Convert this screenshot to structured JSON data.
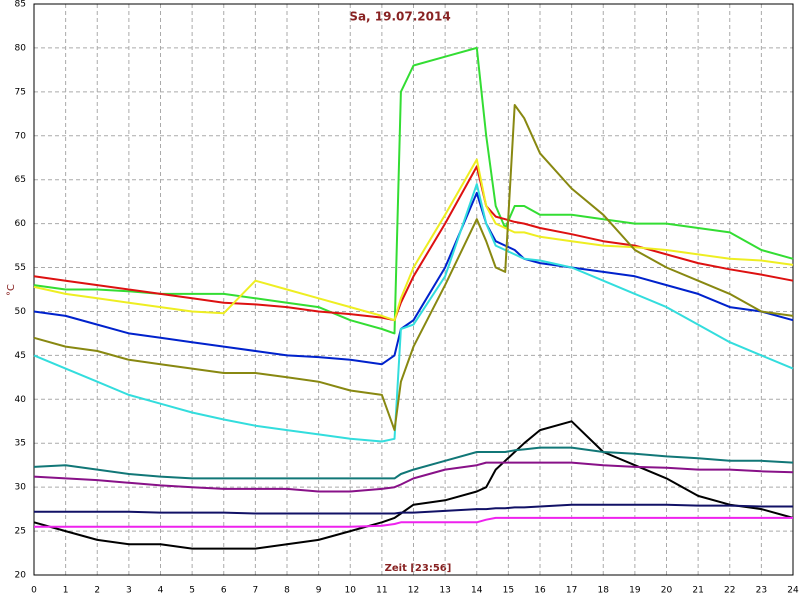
{
  "chart_data": {
    "type": "line",
    "title": "Sa, 19.07.2014",
    "x_label": "Zeit [23:56]",
    "y_label": "°C",
    "x": [
      0,
      1,
      2,
      3,
      4,
      5,
      6,
      7,
      8,
      9,
      10,
      11,
      11.4,
      11.6,
      12,
      13,
      14,
      14.3,
      14.6,
      14.9,
      15.2,
      15.5,
      16,
      17,
      18,
      19,
      20,
      21,
      22,
      23,
      24
    ],
    "xlim": [
      0,
      24
    ],
    "xticks": [
      0,
      1,
      2,
      3,
      4,
      5,
      6,
      7,
      8,
      9,
      10,
      11,
      12,
      13,
      14,
      15,
      16,
      17,
      18,
      19,
      20,
      21,
      22,
      23,
      24
    ],
    "ylim": [
      20,
      85
    ],
    "yticks": [
      20,
      25,
      30,
      35,
      40,
      45,
      50,
      55,
      60,
      65,
      70,
      75,
      80,
      85
    ],
    "grid": true,
    "series": [
      {
        "color": "#33dd33",
        "values": [
          53,
          52.5,
          52.5,
          52.3,
          52,
          52,
          52,
          51.5,
          51,
          50.5,
          49,
          48,
          47.5,
          75,
          78,
          79,
          80,
          70,
          62,
          59.5,
          62,
          62,
          61,
          61,
          60.5,
          60,
          60,
          59.5,
          59,
          57,
          56
        ]
      },
      {
        "color": "#dd1111",
        "values": [
          54,
          53.5,
          53,
          52.5,
          52,
          51.5,
          51,
          50.8,
          50.5,
          50,
          49.7,
          49.3,
          49,
          51,
          54,
          60,
          66.5,
          62,
          60.8,
          60.5,
          60.2,
          60,
          59.5,
          58.8,
          58,
          57.5,
          56.5,
          55.5,
          54.8,
          54.2,
          53.5
        ]
      },
      {
        "color": "#eeee22",
        "values": [
          52.8,
          52,
          51.5,
          51,
          50.5,
          50,
          49.8,
          53.5,
          52.5,
          51.5,
          50.5,
          49.5,
          49,
          51.5,
          55,
          61,
          67.3,
          62,
          60,
          59.5,
          59,
          59,
          58.5,
          58,
          57.5,
          57.3,
          57,
          56.5,
          56,
          55.8,
          55.3
        ]
      },
      {
        "color": "#0022cc",
        "values": [
          50,
          49.5,
          48.5,
          47.5,
          47,
          46.5,
          46,
          45.5,
          45,
          44.8,
          44.5,
          44,
          45,
          48,
          49,
          55,
          63.5,
          60,
          58,
          57.5,
          57,
          56,
          55.5,
          55,
          54.5,
          54,
          53,
          52,
          50.5,
          50,
          49
        ]
      },
      {
        "color": "#33dddd",
        "values": [
          45,
          43.5,
          42,
          40.5,
          39.5,
          38.5,
          37.7,
          37,
          36.5,
          36,
          35.5,
          35.2,
          35.5,
          48,
          48.5,
          54,
          64.5,
          60,
          57.5,
          57,
          56.5,
          56,
          55.8,
          55,
          53.5,
          52,
          50.5,
          48.5,
          46.5,
          45,
          43.5
        ]
      },
      {
        "color": "#888811",
        "values": [
          47,
          46,
          45.5,
          44.5,
          44,
          43.5,
          43,
          43,
          42.5,
          42,
          41,
          40.5,
          36.5,
          42,
          46,
          53,
          60.5,
          58,
          55,
          54.5,
          73.5,
          72,
          68,
          64,
          61,
          57,
          55,
          53.5,
          52,
          50,
          49.5
        ]
      },
      {
        "color": "#000000",
        "values": [
          26,
          25,
          24,
          23.5,
          23.5,
          23,
          23,
          23,
          23.5,
          24,
          25,
          26,
          26.5,
          27,
          28,
          28.5,
          29.5,
          30,
          32,
          33,
          34,
          35,
          36.5,
          37.5,
          34,
          32.5,
          31,
          29,
          28,
          27.5,
          26.5
        ]
      },
      {
        "color": "#117777",
        "values": [
          32.3,
          32.5,
          32,
          31.5,
          31.2,
          31,
          31,
          31,
          31,
          31,
          31,
          31,
          31,
          31.5,
          32,
          33,
          34,
          34,
          34,
          34,
          34.2,
          34.3,
          34.5,
          34.5,
          34,
          33.8,
          33.5,
          33.3,
          33,
          33,
          32.8
        ]
      },
      {
        "color": "#881188",
        "values": [
          31.2,
          31,
          30.8,
          30.5,
          30.2,
          30,
          29.8,
          29.8,
          29.8,
          29.5,
          29.5,
          29.8,
          30,
          30.3,
          31,
          32,
          32.5,
          32.8,
          32.8,
          32.8,
          32.8,
          32.8,
          32.8,
          32.8,
          32.5,
          32.3,
          32.2,
          32,
          32,
          31.8,
          31.7
        ]
      },
      {
        "color": "#111166",
        "values": [
          27.2,
          27.2,
          27.2,
          27.2,
          27.1,
          27.1,
          27.1,
          27,
          27,
          27,
          27,
          27,
          27,
          27.1,
          27.1,
          27.3,
          27.5,
          27.5,
          27.6,
          27.6,
          27.7,
          27.7,
          27.8,
          28,
          28,
          28,
          28,
          27.9,
          27.9,
          27.8,
          27.8
        ]
      },
      {
        "color": "#ee22ee",
        "values": [
          25.5,
          25.5,
          25.5,
          25.5,
          25.5,
          25.5,
          25.5,
          25.5,
          25.5,
          25.5,
          25.5,
          25.6,
          25.8,
          26,
          26,
          26,
          26,
          26.3,
          26.5,
          26.5,
          26.5,
          26.5,
          26.5,
          26.5,
          26.5,
          26.5,
          26.5,
          26.5,
          26.5,
          26.5,
          26.5
        ]
      }
    ]
  }
}
